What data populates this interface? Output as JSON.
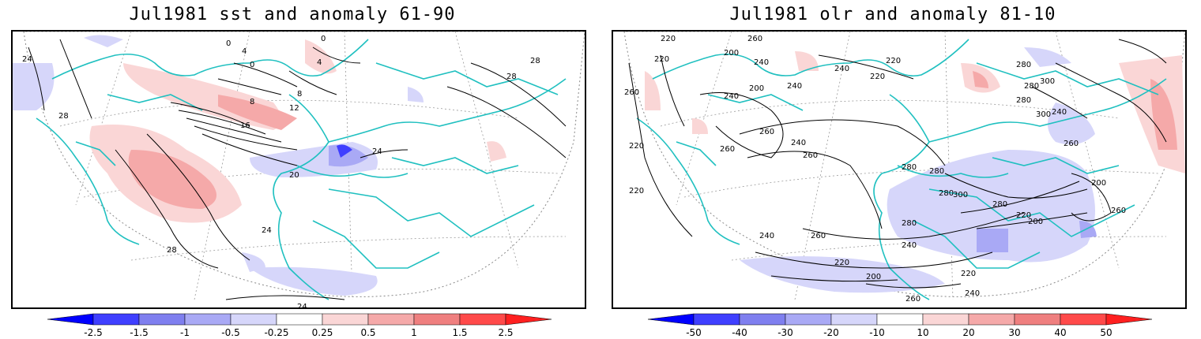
{
  "panels": [
    {
      "title": "Jul1981 sst and anomaly 61-90",
      "colorbar": {
        "labels": [
          "-2.5",
          "-1.5",
          "-1",
          "-0.5",
          "-0.25",
          "0.25",
          "0.5",
          "1",
          "1.5",
          "2.5"
        ],
        "colors": [
          "#0000ff",
          "#3f3fff",
          "#7f7fef",
          "#a9a9f5",
          "#d6d6fa",
          "#ffffff",
          "#fad6d6",
          "#f5a9a9",
          "#ef7f7f",
          "#ff4a4a",
          "#ff2020"
        ]
      },
      "contour_labels": [
        "24",
        "28",
        "28",
        "28",
        "0",
        "4",
        "0",
        "4",
        "0",
        "8",
        "8",
        "12",
        "16",
        "20",
        "24",
        "24",
        "28",
        "24"
      ]
    },
    {
      "title": "Jul1981 olr and anomaly 81-10",
      "colorbar": {
        "labels": [
          "-50",
          "-40",
          "-30",
          "-20",
          "-10",
          "10",
          "20",
          "30",
          "40",
          "50"
        ],
        "colors": [
          "#0000ff",
          "#3f3fff",
          "#7f7fef",
          "#a9a9f5",
          "#d6d6fa",
          "#ffffff",
          "#fad6d6",
          "#f5a9a9",
          "#ef7f7f",
          "#ff4a4a",
          "#ff2020"
        ]
      },
      "contour_labels": [
        "220",
        "260",
        "220",
        "240",
        "200",
        "200",
        "260",
        "240",
        "240",
        "240",
        "220",
        "220",
        "280",
        "280",
        "300",
        "280",
        "300",
        "240",
        "260",
        "220",
        "260",
        "260",
        "280",
        "280",
        "280",
        "240",
        "260",
        "200",
        "220",
        "300",
        "280",
        "280",
        "220",
        "200",
        "260",
        "240",
        "260",
        "220",
        "200",
        "240",
        "260",
        "220",
        "240"
      ]
    }
  ],
  "colors": {
    "coastline": "#20c0c0",
    "contour": "#000000",
    "grid": "#888888"
  }
}
